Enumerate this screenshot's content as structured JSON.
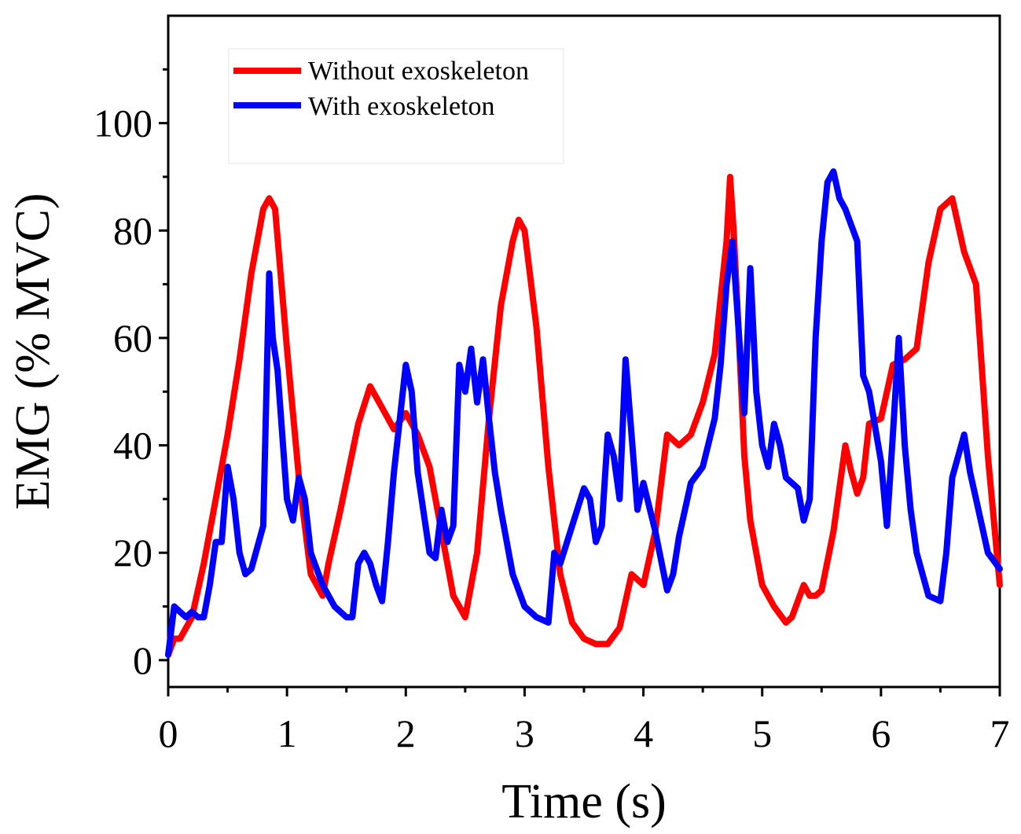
{
  "chart_data": {
    "type": "line",
    "xlabel": "Time (s)",
    "ylabel": "EMG (% MVC)",
    "xlim": [
      0,
      7
    ],
    "ylim": [
      -5,
      120
    ],
    "x_ticks": [
      0,
      1,
      2,
      3,
      4,
      5,
      6,
      7
    ],
    "y_ticks": [
      0,
      20,
      40,
      60,
      80,
      100
    ],
    "grid": false,
    "legend_position": "top-left",
    "series": [
      {
        "name": "Without exoskeleton",
        "color": "#ff0000",
        "x": [
          0,
          0.05,
          0.1,
          0.2,
          0.3,
          0.4,
          0.5,
          0.6,
          0.7,
          0.8,
          0.85,
          0.9,
          1.0,
          1.1,
          1.2,
          1.3,
          1.35,
          1.45,
          1.6,
          1.7,
          1.8,
          1.9,
          2.0,
          2.1,
          2.2,
          2.3,
          2.4,
          2.5,
          2.6,
          2.7,
          2.8,
          2.9,
          2.95,
          3.0,
          3.1,
          3.2,
          3.3,
          3.4,
          3.5,
          3.6,
          3.7,
          3.8,
          3.9,
          4.0,
          4.1,
          4.2,
          4.3,
          4.4,
          4.5,
          4.6,
          4.7,
          4.73,
          4.76,
          4.8,
          4.85,
          4.9,
          5.0,
          5.1,
          5.2,
          5.25,
          5.3,
          5.35,
          5.4,
          5.45,
          5.5,
          5.6,
          5.7,
          5.75,
          5.8,
          5.85,
          5.9,
          6.0,
          6.1,
          6.2,
          6.3,
          6.4,
          6.5,
          6.6,
          6.7,
          6.8,
          6.9,
          7.0
        ],
        "y": [
          1,
          4,
          4,
          8,
          18,
          30,
          42,
          56,
          72,
          84,
          86,
          84,
          58,
          34,
          16,
          12,
          18,
          28,
          44,
          51,
          47,
          43,
          46,
          42,
          36,
          24,
          12,
          8,
          20,
          45,
          66,
          78,
          82,
          80,
          62,
          36,
          16,
          7,
          4,
          3,
          3,
          6,
          16,
          14,
          24,
          42,
          40,
          42,
          48,
          57,
          78,
          90,
          80,
          62,
          38,
          26,
          14,
          10,
          7,
          8,
          11,
          14,
          12,
          12,
          13,
          24,
          40,
          35,
          31,
          34,
          44,
          45,
          55,
          56,
          58,
          74,
          84,
          86,
          76,
          70,
          38,
          14
        ]
      },
      {
        "name": "With exoskeleton",
        "color": "#0000ff",
        "x": [
          0,
          0.05,
          0.1,
          0.15,
          0.2,
          0.25,
          0.3,
          0.35,
          0.4,
          0.45,
          0.5,
          0.55,
          0.6,
          0.65,
          0.7,
          0.8,
          0.85,
          0.88,
          0.92,
          1.0,
          1.05,
          1.1,
          1.15,
          1.2,
          1.3,
          1.4,
          1.5,
          1.55,
          1.6,
          1.65,
          1.7,
          1.75,
          1.8,
          1.85,
          1.9,
          2.0,
          2.05,
          2.1,
          2.2,
          2.25,
          2.3,
          2.35,
          2.4,
          2.45,
          2.5,
          2.55,
          2.6,
          2.65,
          2.7,
          2.75,
          2.8,
          2.9,
          3.0,
          3.1,
          3.2,
          3.25,
          3.3,
          3.4,
          3.5,
          3.55,
          3.6,
          3.65,
          3.7,
          3.75,
          3.8,
          3.85,
          3.9,
          3.95,
          4.0,
          4.1,
          4.2,
          4.25,
          4.3,
          4.4,
          4.5,
          4.6,
          4.65,
          4.7,
          4.75,
          4.8,
          4.85,
          4.9,
          4.95,
          5.0,
          5.05,
          5.1,
          5.15,
          5.2,
          5.3,
          5.35,
          5.4,
          5.45,
          5.5,
          5.55,
          5.6,
          5.65,
          5.7,
          5.8,
          5.85,
          5.9,
          6.0,
          6.05,
          6.1,
          6.15,
          6.2,
          6.25,
          6.3,
          6.4,
          6.5,
          6.55,
          6.6,
          6.65,
          6.7,
          6.75,
          6.8,
          6.9,
          7.0
        ],
        "y": [
          1,
          10,
          9,
          8,
          9,
          8,
          8,
          14,
          22,
          22,
          36,
          30,
          20,
          16,
          17,
          25,
          72,
          60,
          54,
          30,
          26,
          34,
          30,
          20,
          14,
          10,
          8,
          8,
          18,
          20,
          18,
          14,
          11,
          22,
          35,
          55,
          50,
          35,
          20,
          19,
          28,
          22,
          25,
          55,
          50,
          58,
          48,
          56,
          45,
          35,
          28,
          16,
          10,
          8,
          7,
          20,
          18,
          25,
          32,
          30,
          22,
          25,
          42,
          38,
          30,
          56,
          42,
          28,
          33,
          24,
          13,
          16,
          23,
          33,
          36,
          45,
          55,
          70,
          78,
          62,
          46,
          73,
          50,
          40,
          36,
          44,
          40,
          34,
          32,
          26,
          30,
          60,
          78,
          89,
          91,
          86,
          84,
          78,
          53,
          50,
          37,
          25,
          42,
          60,
          40,
          28,
          20,
          12,
          11,
          20,
          34,
          38,
          42,
          35,
          30,
          20,
          17
        ]
      }
    ]
  }
}
